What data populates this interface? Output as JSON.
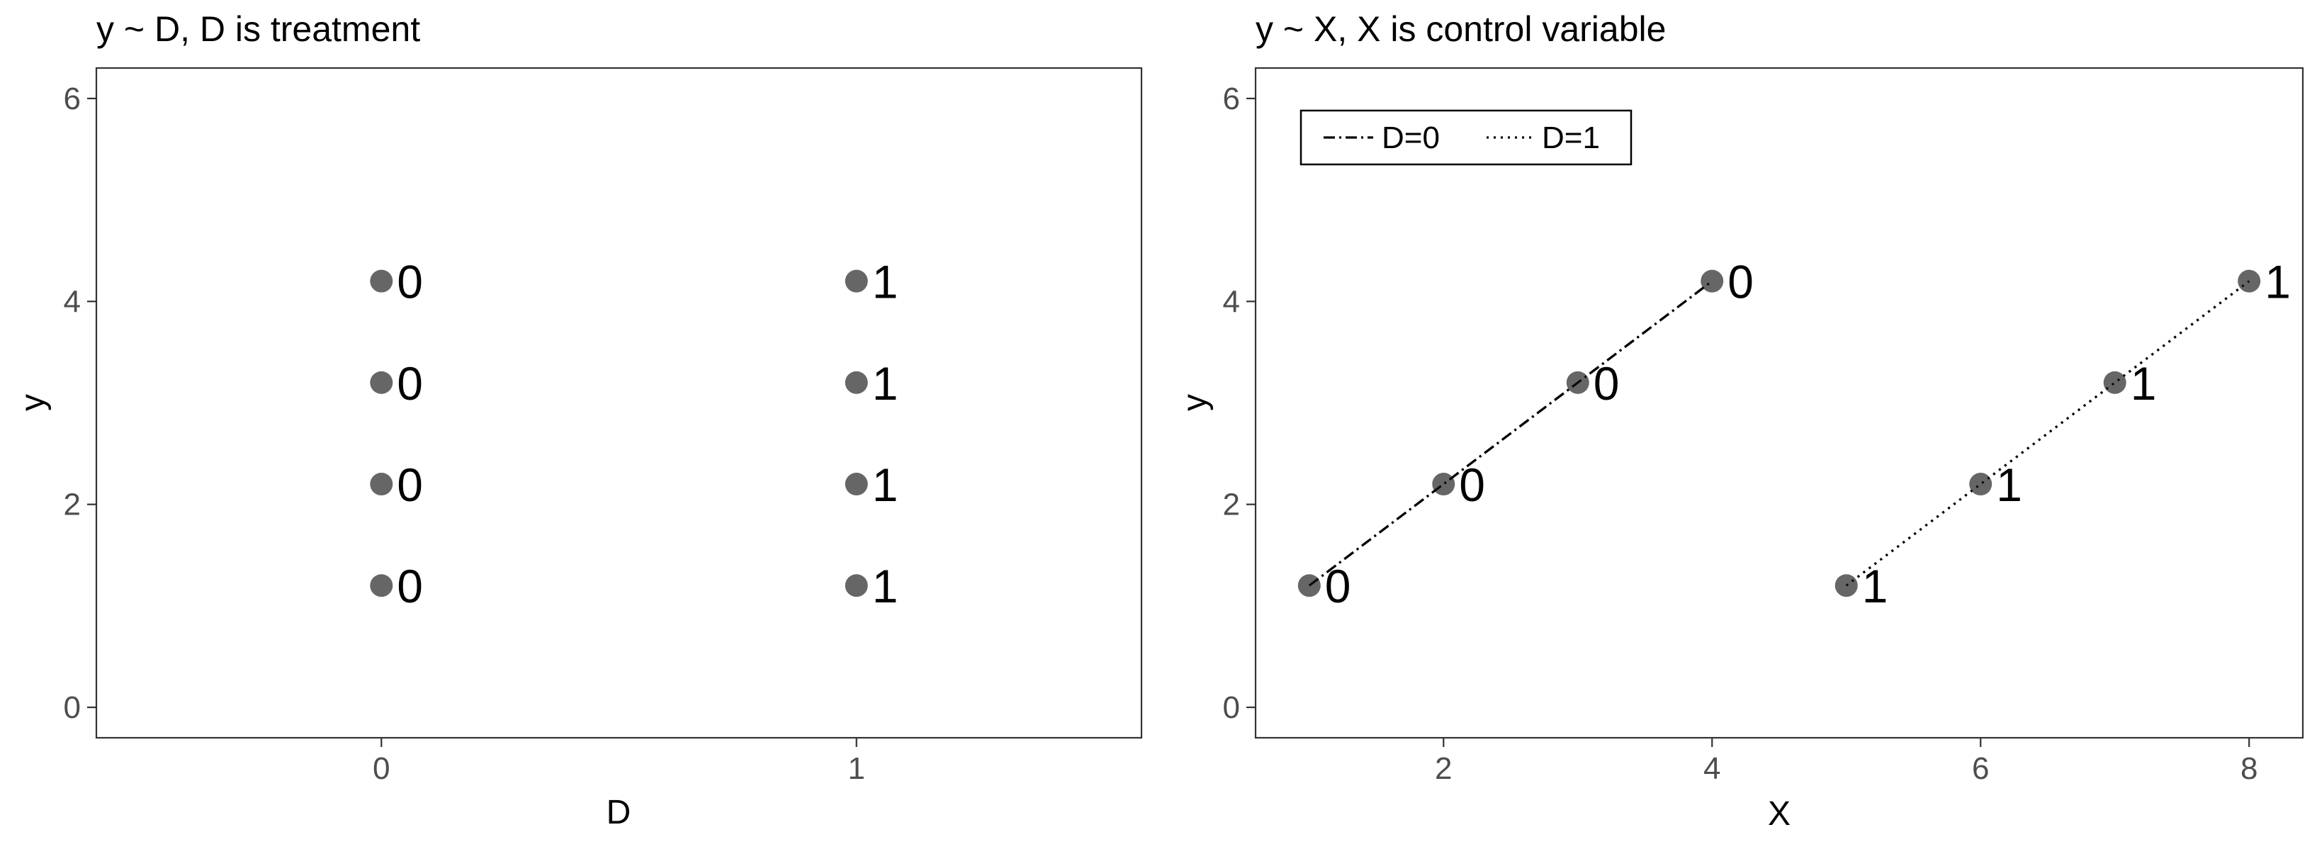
{
  "chart_data": [
    {
      "type": "scatter",
      "title": "y ~ D, D is treatment",
      "xlabel": "D",
      "ylabel": "y",
      "x_type": "categorical",
      "categories": [
        "0",
        "1"
      ],
      "xlim": [
        -0.6,
        1.6
      ],
      "ylim": [
        -0.3,
        6.3
      ],
      "x_ticks": [
        0,
        1
      ],
      "y_ticks": [
        0,
        2,
        4,
        6
      ],
      "grid": false,
      "point_color": "#666666",
      "series": [
        {
          "x": [
            0,
            0,
            0,
            0
          ],
          "y": [
            1.2,
            2.2,
            3.2,
            4.2
          ],
          "labels": [
            "0",
            "0",
            "0",
            "0"
          ]
        },
        {
          "x": [
            1,
            1,
            1,
            1
          ],
          "y": [
            1.2,
            2.2,
            3.2,
            4.2
          ],
          "labels": [
            "1",
            "1",
            "1",
            "1"
          ]
        }
      ]
    },
    {
      "type": "scatter",
      "title": "y ~ X, X is control variable",
      "xlabel": "X",
      "ylabel": "y",
      "xlim": [
        0.6,
        8.4
      ],
      "ylim": [
        -0.3,
        6.3
      ],
      "x_ticks": [
        2,
        4,
        6,
        8
      ],
      "y_ticks": [
        0,
        2,
        4,
        6
      ],
      "grid": false,
      "point_color": "#666666",
      "legend_position": "top-left",
      "series": [
        {
          "name": "D=0",
          "line_style": "dotdash",
          "x": [
            1,
            2,
            3,
            4
          ],
          "y": [
            1.2,
            2.2,
            3.2,
            4.2
          ],
          "labels": [
            "0",
            "0",
            "0",
            "0"
          ]
        },
        {
          "name": "D=1",
          "line_style": "dotted",
          "x": [
            5,
            6,
            7,
            8
          ],
          "y": [
            1.2,
            2.2,
            3.2,
            4.2
          ],
          "labels": [
            "1",
            "1",
            "1",
            "1"
          ]
        }
      ]
    }
  ]
}
